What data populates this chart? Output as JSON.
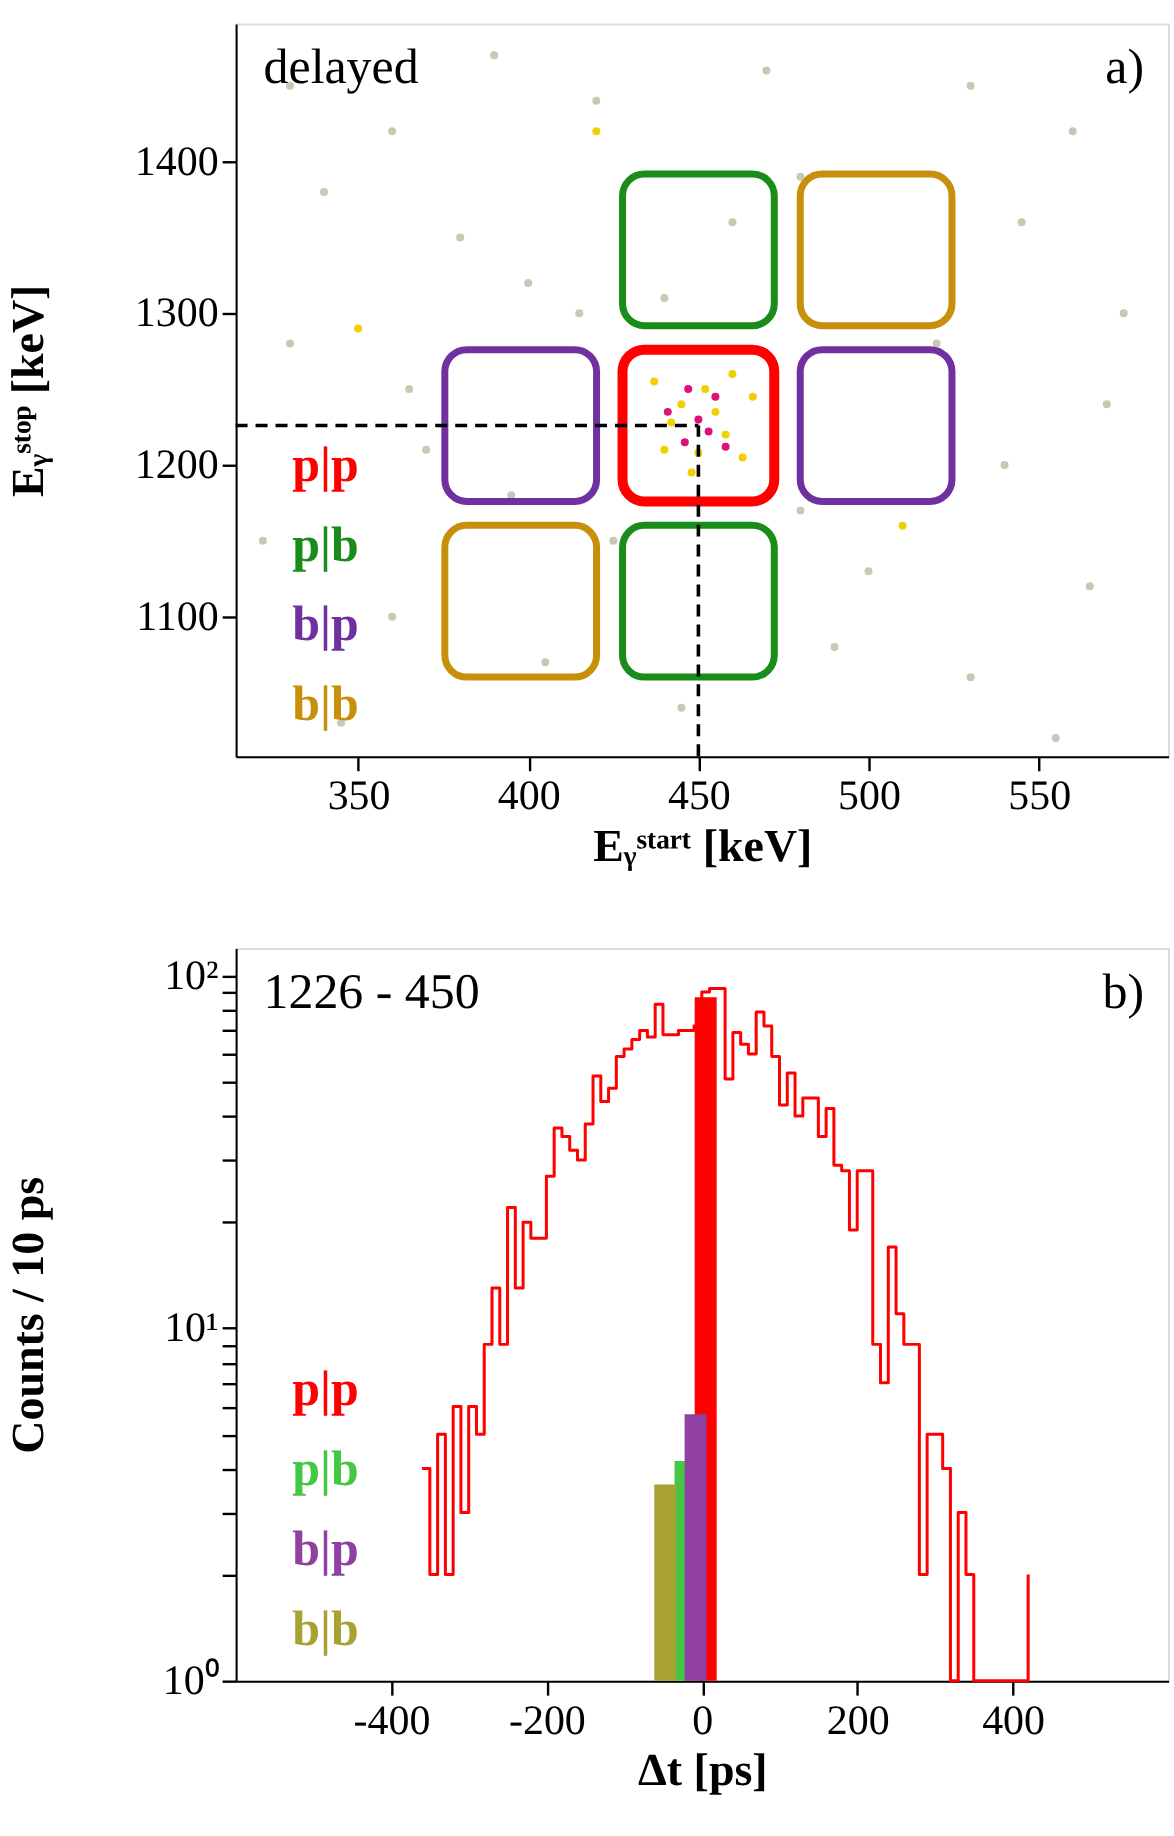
{
  "chart_data": [
    {
      "type": "scatter",
      "xlabel": "Eᵧˢᵗᵃʳᵗ [keV]",
      "ylabel": "Eᵧˢᵗᵒᵖ [keV]",
      "xlim": [
        314,
        588
      ],
      "ylim": [
        1008,
        1491
      ],
      "xticks": [
        350,
        400,
        450,
        500,
        550
      ],
      "yticks": [
        1100,
        1200,
        1300,
        1400
      ],
      "annotations": [
        "delayed",
        "a)"
      ],
      "grid": false,
      "ref_lines": [
        {
          "axis": "y",
          "value": 1226,
          "line_style": "dashed",
          "color": "#000000"
        },
        {
          "axis": "x",
          "value": 450,
          "line_style": "dashed",
          "color": "#000000"
        }
      ],
      "series": [
        {
          "color": "#c8c8b4",
          "marker": "circle",
          "x": [
            330,
            360,
            390,
            420,
            470,
            530,
            560,
            340,
            380,
            415,
            480,
            545,
            575,
            330,
            365,
            395,
            425,
            480,
            540,
            570,
            322,
            360,
            405,
            445,
            490,
            530,
            565,
            345,
            500,
            520,
            440,
            460,
            400,
            370,
            555
          ],
          "values": [
            1450,
            1420,
            1470,
            1440,
            1460,
            1450,
            1420,
            1380,
            1350,
            1300,
            1390,
            1360,
            1300,
            1280,
            1250,
            1180,
            1150,
            1170,
            1200,
            1240,
            1150,
            1100,
            1070,
            1040,
            1080,
            1060,
            1120,
            1030,
            1130,
            1280,
            1310,
            1360,
            1320,
            1210,
            1020
          ]
        },
        {
          "color": "#f0d000",
          "marker": "circle",
          "x": [
            440,
            445,
            452,
            458,
            463,
            437,
            448,
            455,
            466,
            442,
            460,
            450,
            350,
            510,
            420
          ],
          "values": [
            1210,
            1240,
            1250,
            1220,
            1205,
            1255,
            1195,
            1235,
            1245,
            1228,
            1260,
            1208,
            1290,
            1160,
            1420
          ]
        },
        {
          "color": "#e0107a",
          "marker": "circle",
          "x": [
            446,
            450,
            455,
            441,
            458,
            453,
            447
          ],
          "values": [
            1215,
            1230,
            1245,
            1235,
            1212,
            1222,
            1250
          ]
        },
        {
          "name": "p|p",
          "color": "#ff0000"
        },
        {
          "name": "p|b",
          "color": "#1a8c1a"
        },
        {
          "name": "b|p",
          "color": "#7030a0"
        },
        {
          "name": "b|b",
          "color": "#c8900a"
        }
      ]
    },
    {
      "type": "bar",
      "xlabel": "Δt [ps]",
      "ylabel": "Counts / 10 ps",
      "log": true,
      "xlim": [
        -600,
        600
      ],
      "ylim": [
        1,
        120
      ],
      "xticks": [
        -400,
        -200,
        0,
        200,
        400
      ],
      "yticks": [
        {
          "value": 1,
          "label": "10⁰"
        },
        {
          "value": 2,
          "label": null
        },
        {
          "value": 3,
          "label": null
        },
        {
          "value": 4,
          "label": null
        },
        {
          "value": 5,
          "label": null
        },
        {
          "value": 6,
          "label": null
        },
        {
          "value": 7,
          "label": null
        },
        {
          "value": 8,
          "label": null
        },
        {
          "value": 9,
          "label": null
        },
        {
          "value": 10,
          "label": "10¹"
        },
        {
          "value": 20,
          "label": null
        },
        {
          "value": 30,
          "label": null
        },
        {
          "value": 40,
          "label": null
        },
        {
          "value": 50,
          "label": null
        },
        {
          "value": 60,
          "label": null
        },
        {
          "value": 70,
          "label": null
        },
        {
          "value": 80,
          "label": null
        },
        {
          "value": 90,
          "label": null
        },
        {
          "value": 100,
          "label": "10²"
        }
      ],
      "annotations": [
        "1226 - 450",
        "b)"
      ],
      "grid": false,
      "series": [
        {
          "type": "step",
          "color": "#ff0000",
          "x": [
            -360,
            -350,
            -340,
            -330,
            -320,
            -310,
            -300,
            -290,
            -280,
            -270,
            -260,
            -250,
            -240,
            -230,
            -220,
            -210,
            -200,
            -190,
            -180,
            -170,
            -160,
            -150,
            -140,
            -130,
            -120,
            -110,
            -100,
            -90,
            -80,
            -70,
            -60,
            -50,
            -40,
            -30,
            -20,
            -10,
            0,
            10,
            20,
            30,
            40,
            50,
            60,
            70,
            80,
            90,
            100,
            110,
            120,
            130,
            140,
            150,
            160,
            170,
            180,
            190,
            200,
            210,
            220,
            230,
            240,
            250,
            260,
            270,
            280,
            290,
            300,
            310,
            320,
            330,
            340,
            350,
            360,
            370,
            380,
            390,
            400,
            410,
            420
          ],
          "values": [
            4,
            2,
            5,
            2,
            6,
            3,
            6,
            5,
            9,
            13,
            9,
            22,
            13,
            20,
            18,
            18,
            27,
            37,
            35,
            32,
            30,
            38,
            52,
            44,
            48,
            59,
            62,
            66,
            70,
            67,
            83,
            68,
            68,
            70,
            70,
            72,
            90,
            92,
            92,
            51,
            69,
            64,
            60,
            79,
            72,
            59,
            43,
            53,
            40,
            45,
            45,
            35,
            42,
            29,
            28,
            19,
            28,
            28,
            9,
            7,
            17,
            11,
            9,
            9,
            2,
            5,
            5,
            4,
            1,
            3,
            2,
            1,
            1,
            1,
            1,
            1,
            1,
            1,
            2
          ]
        },
        {
          "type": "bar",
          "name": "p|p",
          "color": "#ff0000",
          "x": [
            5
          ],
          "values": [
            87
          ]
        },
        {
          "type": "bar",
          "name": "p|b",
          "color": "#44c844",
          "x": [
            -21
          ],
          "values": [
            4.2
          ]
        },
        {
          "type": "bar",
          "name": "b|p",
          "color": "#9040a0",
          "x": [
            -8
          ],
          "values": [
            5.7
          ]
        },
        {
          "type": "bar",
          "name": "b|b",
          "color": "#a8a232",
          "x": [
            -47
          ],
          "values": [
            3.6
          ]
        }
      ]
    }
  ]
}
